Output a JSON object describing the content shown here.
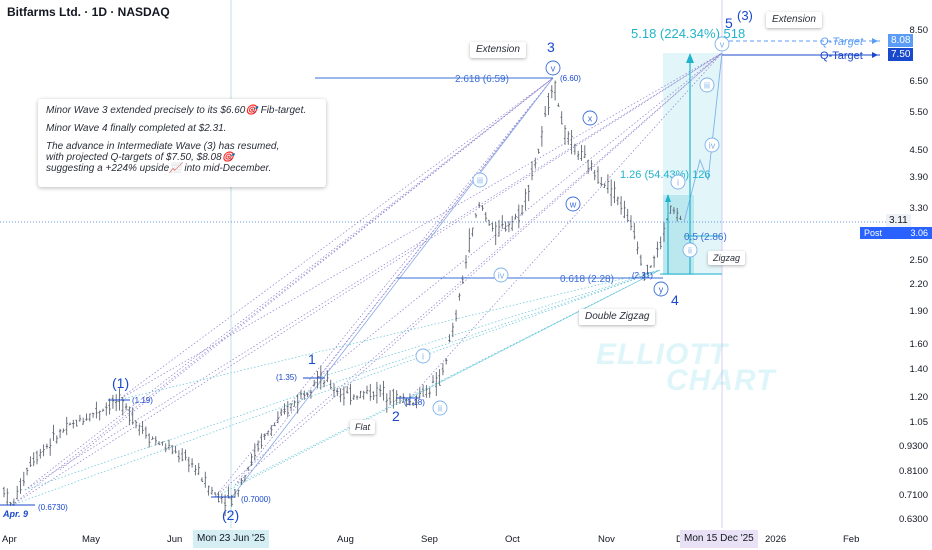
{
  "chart_title": "Bitfarms Ltd. · 1D · NASDAQ",
  "note": {
    "line1": "Minor Wave 3 extended precisely to its $6.60🎯 Fib-target.",
    "line2": "Minor Wave 4 finally completed at $2.31.",
    "line3": "The advance in Intermediate Wave (3) has resumed,\nwith projected Q-targets of $7.50, $8.08🎯\nsuggesting a +224% upside📈 into mid-December."
  },
  "boxes": {
    "extension_top": "Extension",
    "extension_mid": "Extension",
    "flat": "Flat",
    "double_zigzag": "Double Zigzag",
    "zigzag": "Zigzag"
  },
  "watermark": {
    "line1": "ELLIOTT",
    "line2": "CHART"
  },
  "projection": {
    "text": "5.18 (224.34%) 518",
    "small_text": "1.26 (54.43%) 126",
    "half_label": "0.5 (2.86)"
  },
  "fib_labels": {
    "f2618": "2.618 (6.59)",
    "f0618": "0.618 (2.28)",
    "p660": "(6.60)",
    "p231": "(2.31)",
    "p135": "(1.35)",
    "p119": "(1.19)",
    "p118": "(1.18)",
    "p0673": "(0.6730)",
    "p07": "(0.7000)"
  },
  "wave_labels": {
    "w1_intermediate": "(1)",
    "w2_intermediate": "(2)",
    "w3_intermediate": "(3)",
    "minor1": "1",
    "minor2": "2",
    "minor3": "3",
    "minor4": "4",
    "minor5": "5",
    "mini_i": "i",
    "mini_ii": "ii",
    "mini_iii": "iii",
    "mini_iv": "iv",
    "mini_v": "v",
    "mini_w": "w",
    "mini_x": "x",
    "mini_y": "y",
    "sub_i": "i",
    "sub_ii": "ii",
    "sub_iii": "iii",
    "sub_iv": "iv",
    "sub_v": "v",
    "small_i": "i",
    "small_ii": "ii"
  },
  "q_targets": [
    {
      "label": "Q-Target",
      "price": "8.08",
      "color": "#5b9cf6"
    },
    {
      "label": "Q-Target",
      "price": "7.50",
      "color": "#1848cc"
    }
  ],
  "price_axis": {
    "ticks": [
      "8.50",
      "6.50",
      "5.50",
      "4.50",
      "3.90",
      "3.30",
      "2.50",
      "2.20",
      "1.90",
      "1.60",
      "1.40",
      "1.20",
      "1.05",
      "0.9300",
      "0.8100",
      "0.7100",
      "0.6300"
    ],
    "current_price": "3.11",
    "post_label": "Post",
    "post_price": "3.06"
  },
  "time_axis": {
    "ticks": [
      "Apr",
      "May",
      "Jun",
      "Aug",
      "Sep",
      "Oct",
      "Nov",
      "De",
      "2026",
      "Feb"
    ],
    "highlight_start": "Mon 23 Jun '25",
    "highlight_end": "Mon 15 Dec '25"
  },
  "apr_label": "Apr. 9",
  "colors": {
    "wave_blue": "#1848cc",
    "fib_blue": "#3d6fd6",
    "cyan": "#22b3cc",
    "light_blue": "#7fb2ea",
    "candle": "#5d6470",
    "post_bg": "#2962ff"
  },
  "chart_data": {
    "type": "candlestick",
    "title": "Bitfarms Ltd. · 1D · NASDAQ",
    "scale": "log",
    "ylim": [
      0.6,
      8.6
    ],
    "x_range": [
      "Apr 2025",
      "Feb 2026"
    ],
    "key_points": [
      {
        "date": "2025-04-09",
        "price": 0.673,
        "label": "Apr. 9"
      },
      {
        "date": "2025-05-13",
        "price": 1.19,
        "label": "(1)"
      },
      {
        "date": "2025-06-23",
        "price": 0.7,
        "label": "(2)"
      },
      {
        "date": "2025-07-28",
        "price": 1.35,
        "label": "1"
      },
      {
        "date": "2025-08-22",
        "price": 1.18,
        "label": "2"
      },
      {
        "date": "2025-10-15",
        "price": 6.6,
        "label": "3"
      },
      {
        "date": "2025-11-21",
        "price": 2.31,
        "label": "4"
      },
      {
        "date": "2025-12-02",
        "price": 3.06,
        "label": "Post"
      }
    ],
    "fib_levels": [
      {
        "label": "2.618",
        "price": 6.59
      },
      {
        "label": "0.618",
        "price": 2.28
      },
      {
        "label": "0.5",
        "price": 2.86
      }
    ],
    "targets": [
      {
        "label": "Q-Target",
        "price": 8.08
      },
      {
        "label": "Q-Target",
        "price": 7.5
      }
    ],
    "projection": {
      "change": 5.18,
      "percent": 224.34
    }
  }
}
